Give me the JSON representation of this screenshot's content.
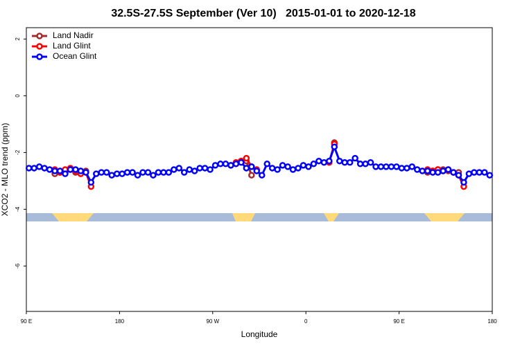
{
  "chart_data": {
    "type": "line",
    "title": "32.5S-27.5S September (Ver 10)   2015-01-01 to 2020-12-18",
    "x_label": "Longitude",
    "y_label": "XCO2 - MLO trend (ppm)",
    "xlim": [
      90,
      540
    ],
    "ylim": [
      -7.6,
      2.4
    ],
    "xticks": [
      {
        "value": 90,
        "label": "90 E"
      },
      180,
      {
        "value": 270,
        "label": "90 W"
      },
      {
        "value": 360,
        "label": "0"
      },
      {
        "value": 450,
        "label": "90 E"
      },
      {
        "value": 540,
        "label": "180"
      }
    ],
    "yticks": [
      -6,
      -4,
      -2,
      0,
      2
    ],
    "legend": "top-left",
    "x": [
      92.5,
      97.5,
      102.5,
      107.5,
      112.5,
      117.5,
      122.5,
      127.5,
      132.5,
      137.5,
      142.5,
      147.5,
      152.5,
      157.5,
      162.5,
      167.5,
      172.5,
      177.5,
      182.5,
      187.5,
      192.5,
      197.5,
      202.5,
      207.5,
      212.5,
      217.5,
      222.5,
      227.5,
      232.5,
      237.5,
      242.5,
      247.5,
      252.5,
      257.5,
      262.5,
      267.5,
      272.5,
      277.5,
      282.5,
      287.5,
      292.5,
      297.5,
      302.5,
      307.5,
      312.5,
      317.5,
      322.5,
      327.5,
      332.5,
      337.5,
      342.5,
      347.5,
      352.5,
      357.5,
      362.5,
      367.5,
      372.5,
      377.5,
      382.5,
      387.5,
      392.5,
      397.5,
      402.5,
      407.5,
      412.5,
      417.5,
      422.5,
      427.5,
      432.5,
      437.5,
      442.5,
      447.5,
      452.5,
      457.5,
      462.5,
      467.5,
      472.5,
      477.5,
      482.5,
      487.5,
      492.5,
      497.5,
      502.5,
      507.5,
      512.5,
      517.5,
      522.5,
      527.5,
      532.5,
      537.5
    ],
    "series": [
      {
        "name": "Land Nadir",
        "color": "#a52a2a",
        "values": [
          null,
          null,
          null,
          null,
          null,
          -2.75,
          -2.7,
          -2.65,
          -2.6,
          -2.7,
          -2.65,
          -2.65,
          null,
          null,
          null,
          null,
          null,
          null,
          null,
          null,
          null,
          null,
          null,
          null,
          null,
          null,
          null,
          null,
          null,
          null,
          null,
          null,
          null,
          null,
          null,
          null,
          null,
          null,
          null,
          -2.45,
          -2.4,
          -2.3,
          -2.3,
          -2.8,
          null,
          null,
          null,
          null,
          null,
          null,
          null,
          null,
          null,
          null,
          null,
          null,
          null,
          null,
          null,
          -1.65,
          null,
          null,
          null,
          null,
          null,
          null,
          null,
          null,
          null,
          null,
          null,
          null,
          null,
          null,
          null,
          null,
          null,
          -2.7,
          -2.65,
          -2.6,
          -2.6,
          -2.65,
          -2.7,
          -2.7,
          null,
          null,
          null,
          null,
          null,
          null
        ]
      },
      {
        "name": "Land Glint",
        "color": "#ff0000",
        "values": [
          null,
          null,
          null,
          null,
          null,
          -2.6,
          -2.7,
          -2.6,
          -2.55,
          -2.65,
          -2.75,
          -2.7,
          -3.2,
          null,
          null,
          null,
          null,
          null,
          null,
          null,
          null,
          null,
          null,
          null,
          null,
          null,
          null,
          null,
          null,
          null,
          null,
          null,
          null,
          null,
          null,
          null,
          null,
          null,
          null,
          null,
          -2.35,
          -2.3,
          -2.2,
          -2.5,
          -2.6,
          null,
          null,
          null,
          null,
          null,
          null,
          null,
          null,
          null,
          null,
          null,
          null,
          null,
          -2.35,
          -1.7,
          null,
          null,
          null,
          null,
          null,
          null,
          null,
          null,
          null,
          null,
          null,
          null,
          null,
          null,
          null,
          null,
          null,
          -2.6,
          -2.65,
          -2.6,
          -2.65,
          -2.6,
          -2.7,
          -2.8,
          -3.2,
          null,
          null,
          null,
          null,
          null
        ]
      },
      {
        "name": "Ocean Glint",
        "color": "#0000ff",
        "values": [
          -2.55,
          -2.55,
          -2.5,
          -2.55,
          -2.6,
          -2.65,
          -2.65,
          -2.75,
          -2.6,
          -2.6,
          -2.65,
          -2.7,
          -3.05,
          -2.75,
          -2.7,
          -2.7,
          -2.8,
          -2.75,
          -2.75,
          -2.7,
          -2.7,
          -2.8,
          -2.7,
          -2.7,
          -2.8,
          -2.7,
          -2.7,
          -2.7,
          -2.6,
          -2.55,
          -2.7,
          -2.6,
          -2.65,
          -2.55,
          -2.55,
          -2.6,
          -2.45,
          -2.4,
          -2.4,
          -2.45,
          -2.4,
          -2.35,
          -2.55,
          -2.5,
          -2.65,
          -2.8,
          -2.4,
          -2.55,
          -2.6,
          -2.45,
          -2.5,
          -2.6,
          -2.55,
          -2.45,
          -2.5,
          -2.4,
          -2.3,
          -2.35,
          -2.3,
          -1.8,
          -2.3,
          -2.35,
          -2.35,
          -2.2,
          -2.4,
          -2.4,
          -2.35,
          -2.5,
          -2.5,
          -2.5,
          -2.5,
          -2.5,
          -2.55,
          -2.55,
          -2.5,
          -2.6,
          -2.65,
          -2.65,
          -2.7,
          -2.7,
          -2.65,
          -2.6,
          -2.7,
          -2.8,
          -3.05,
          -2.75,
          -2.7,
          -2.7,
          -2.7,
          -2.8
        ]
      }
    ]
  }
}
